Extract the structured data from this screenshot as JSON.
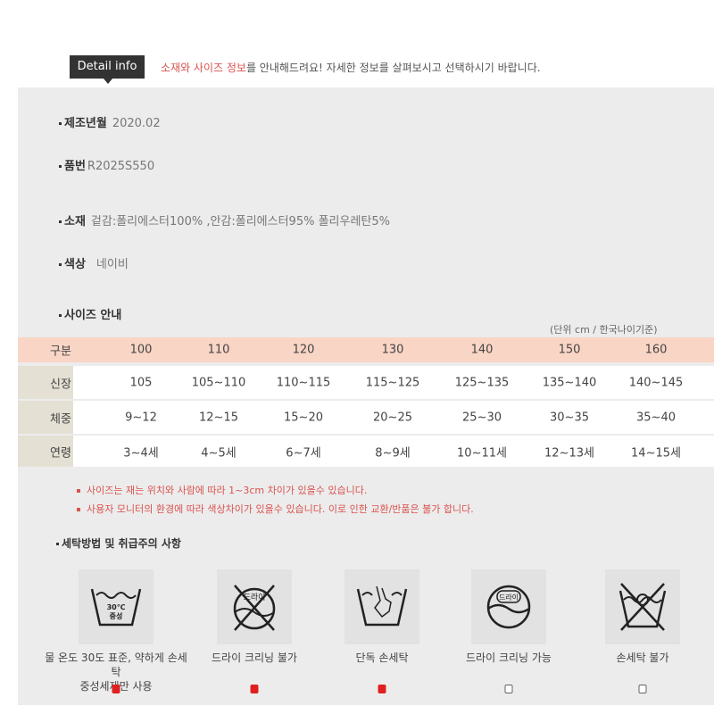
{
  "header": {
    "badge": "Detail info",
    "intro_highlight": "소재와 사이즈 정보",
    "intro_rest": "를 안내해드려요! 자세한 정보를 살펴보시고 선택하시기 바랍니다."
  },
  "info": [
    {
      "label": "제조년월",
      "value": "2020.02"
    },
    {
      "label": "품번",
      "value": "R2025S550"
    },
    {
      "label": "소재",
      "value": "겉감:폴리에스터100% ,안감:폴리에스터95% 폴리우레탄5%"
    },
    {
      "label": "색상",
      "value": "네이비"
    },
    {
      "label": "사이즈 안내",
      "value": ""
    }
  ],
  "size_table": {
    "unit": "(단위 cm / 한국나이기준)",
    "header": [
      "구분",
      "100",
      "110",
      "120",
      "130",
      "140",
      "150",
      "160"
    ],
    "rows": [
      [
        "신장",
        "105",
        "105~110",
        "110~115",
        "115~125",
        "125~135",
        "135~140",
        "140~145"
      ],
      [
        "체중",
        "9~12",
        "12~15",
        "15~20",
        "20~25",
        "25~30",
        "30~35",
        "35~40"
      ],
      [
        "연령",
        "3~4세",
        "4~5세",
        "6~7세",
        "8~9세",
        "10~11세",
        "12~13세",
        "14~15세"
      ]
    ],
    "header_color": "#f9d5c5"
  },
  "notes": [
    "사이즈는 재는 위치와 사람에 따라 1~3cm 차이가 있을수 있습니다.",
    "사용자 모니터의 환경에 따라 색상차이가 있을수 있습니다. 이로 인한 교환/반품은 불가 합니다."
  ],
  "care": {
    "title": "세탁방법 및 취급주의 사항",
    "items": [
      {
        "icon": "wash-30c-neutral-icon",
        "icon_text1": "30℃",
        "icon_text2": "중성",
        "label1": "물 온도 30도 표준, 약하게 손세탁",
        "label2": "중성세제만 사용",
        "checked": true
      },
      {
        "icon": "no-dry-clean-icon",
        "icon_text1": "드라이",
        "label1": "드라이 크리닝 불가",
        "checked": true
      },
      {
        "icon": "hand-wash-icon",
        "label1": "단독 손세탁",
        "checked": true
      },
      {
        "icon": "dry-clean-icon",
        "icon_text1": "드라이",
        "label1": "드라이 크리닝 가능",
        "checked": false
      },
      {
        "icon": "no-hand-wash-icon",
        "label1": "손세탁 불가",
        "checked": false
      }
    ],
    "check_color": "#e02020"
  }
}
